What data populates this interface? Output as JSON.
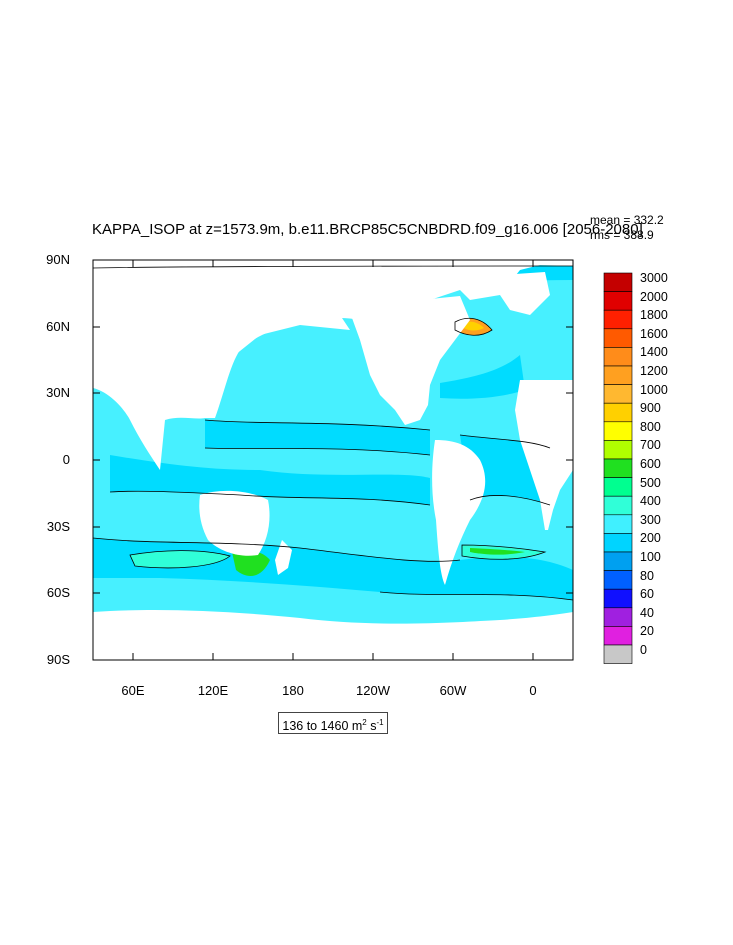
{
  "title": "KAPPA_ISOP at z=1573.9m, b.e11.BRCP85C5CNBDRD.f09_g16.006 [2056-2080]",
  "stats": {
    "mean": "mean = 332.2",
    "rms": "rms = 388.9"
  },
  "lat_labels": [
    "90N",
    "60N",
    "30N",
    "0",
    "30S",
    "60S",
    "90S"
  ],
  "lon_labels": [
    "60E",
    "120E",
    "180",
    "120W",
    "60W",
    "0"
  ],
  "colorbar": {
    "labels": [
      "3000",
      "2000",
      "1800",
      "1600",
      "1400",
      "1200",
      "1000",
      "900",
      "800",
      "700",
      "600",
      "500",
      "400",
      "300",
      "200",
      "100",
      "80",
      "60",
      "40",
      "20",
      "0"
    ],
    "colors": [
      "#c40000",
      "#e00000",
      "#ff2000",
      "#ff5a00",
      "#ff8c1a",
      "#ffa020",
      "#ffb830",
      "#ffd000",
      "#ffff00",
      "#b0ff00",
      "#20e020",
      "#00ff90",
      "#30ffd8",
      "#40f0ff",
      "#00d4ff",
      "#00a0f0",
      "#0060ff",
      "#1010ff",
      "#a020e0",
      "#e020e0",
      "#c8c8c8"
    ]
  },
  "range_text": {
    "prefix": "136 to 1460 m",
    "exp1": "2",
    "mid": " s",
    "exp2": "-1"
  },
  "colors": {
    "ocean_base": "#47f0ff",
    "ocean_mid": "#00dcff",
    "land": "#ffffff"
  }
}
